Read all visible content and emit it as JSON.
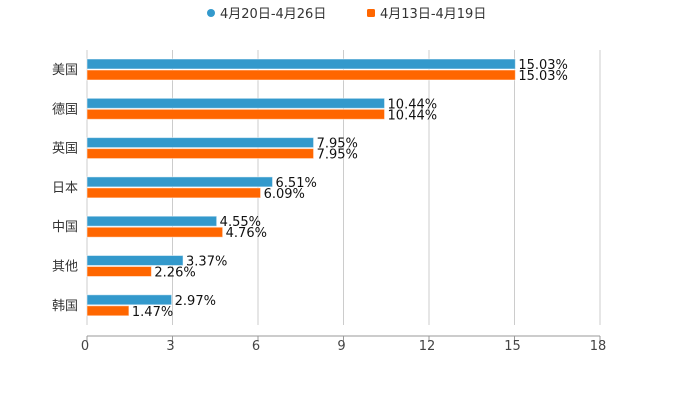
{
  "chart_data": {
    "type": "bar",
    "orientation": "horizontal",
    "categories": [
      "美国",
      "德国",
      "英国",
      "日本",
      "中国",
      "其他",
      "韩国"
    ],
    "series": [
      {
        "name": "4月20日-4月26日",
        "color": "#3399cc",
        "values": [
          15.03,
          10.44,
          7.95,
          6.51,
          4.55,
          3.37,
          2.97
        ],
        "labels": [
          "15.03%",
          "10.44%",
          "7.95%",
          "6.51%",
          "4.55%",
          "3.37%",
          "2.97%"
        ]
      },
      {
        "name": "4月13日-4月19日",
        "color": "#ff6600",
        "values": [
          15.03,
          10.44,
          7.95,
          6.09,
          4.76,
          2.26,
          1.47
        ],
        "labels": [
          "15.03%",
          "10.44%",
          "7.95%",
          "6.09%",
          "4.76%",
          "2.26%",
          "1.47%"
        ]
      }
    ],
    "xlim": [
      0,
      18
    ],
    "xticks": [
      "0",
      "3",
      "6",
      "9",
      "12",
      "15",
      "18"
    ],
    "grid": true,
    "legend_position": "top-center",
    "title": "",
    "xlabel": "",
    "ylabel": ""
  }
}
